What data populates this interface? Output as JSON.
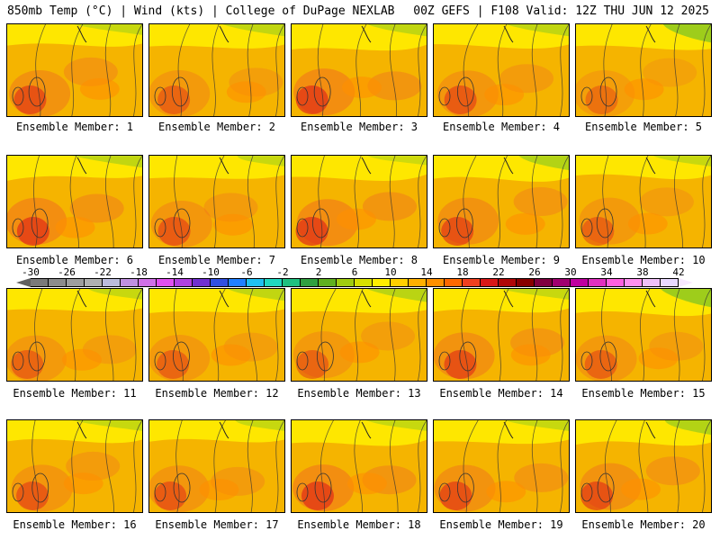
{
  "header": {
    "left": "850mb Temp (°C) | Wind (kts) | College of DuPage NEXLAB",
    "right": "00Z GEFS | F108 Valid: 12Z THU JUN 12 2025"
  },
  "members": [
    {
      "caption": "Ensemble Member: 1",
      "hot": 0.8,
      "cool": 0.3
    },
    {
      "caption": "Ensemble Member: 2",
      "hot": 0.6,
      "cool": 0.4
    },
    {
      "caption": "Ensemble Member: 3",
      "hot": 0.9,
      "cool": 0.4
    },
    {
      "caption": "Ensemble Member: 4",
      "hot": 0.7,
      "cool": 0.4
    },
    {
      "caption": "Ensemble Member: 5",
      "hot": 0.5,
      "cool": 0.9
    },
    {
      "caption": "Ensemble Member: 6",
      "hot": 0.9,
      "cool": 0.4
    },
    {
      "caption": "Ensemble Member: 7",
      "hot": 0.7,
      "cool": 0.3
    },
    {
      "caption": "Ensemble Member: 8",
      "hot": 0.9,
      "cool": 0.2
    },
    {
      "caption": "Ensemble Member: 9",
      "hot": 0.8,
      "cool": 0.6
    },
    {
      "caption": "Ensemble Member: 10",
      "hot": 0.6,
      "cool": 0.3
    },
    {
      "caption": "Ensemble Member: 11",
      "hot": 0.6,
      "cool": 0.3
    },
    {
      "caption": "Ensemble Member: 12",
      "hot": 0.6,
      "cool": 0.4
    },
    {
      "caption": "Ensemble Member: 13",
      "hot": 0.6,
      "cool": 0.5
    },
    {
      "caption": "Ensemble Member: 14",
      "hot": 0.8,
      "cool": 0.3
    },
    {
      "caption": "Ensemble Member: 15",
      "hot": 0.6,
      "cool": 0.9
    },
    {
      "caption": "Ensemble Member: 16",
      "hot": 0.7,
      "cool": 0.3
    },
    {
      "caption": "Ensemble Member: 17",
      "hot": 0.7,
      "cool": 0.3
    },
    {
      "caption": "Ensemble Member: 18",
      "hot": 0.9,
      "cool": 0.3
    },
    {
      "caption": "Ensemble Member: 19",
      "hot": 0.8,
      "cool": 0.3
    },
    {
      "caption": "Ensemble Member: 20",
      "hot": 0.8,
      "cool": 0.6
    }
  ],
  "colorbar": {
    "ticks": [
      "-30",
      "-26",
      "-22",
      "-18",
      "-14",
      "-10",
      "-6",
      "-2",
      "2",
      "6",
      "10",
      "14",
      "18",
      "22",
      "26",
      "30",
      "34",
      "38",
      "42"
    ],
    "colors": [
      "#7a7a7a",
      "#8c8c8c",
      "#9e9e9e",
      "#b0b0b0",
      "#bcbcdc",
      "#c090e0",
      "#d070e8",
      "#e050f0",
      "#b040e0",
      "#7030d0",
      "#3050e0",
      "#2080ff",
      "#20c0f0",
      "#20d8c0",
      "#20c080",
      "#30a040",
      "#60b020",
      "#a0cc10",
      "#d8e000",
      "#ffee00",
      "#ffd000",
      "#ffb000",
      "#ff9000",
      "#ff6800",
      "#f04020",
      "#d81818",
      "#b00808",
      "#880000",
      "#800040",
      "#a00070",
      "#c000a0",
      "#e030c0",
      "#ff60e0",
      "#ff90f0",
      "#f0c0f8",
      "#e8d8ff"
    ],
    "left_arrow_color": "#606060",
    "right_arrow_color": "#f8e8ff"
  }
}
